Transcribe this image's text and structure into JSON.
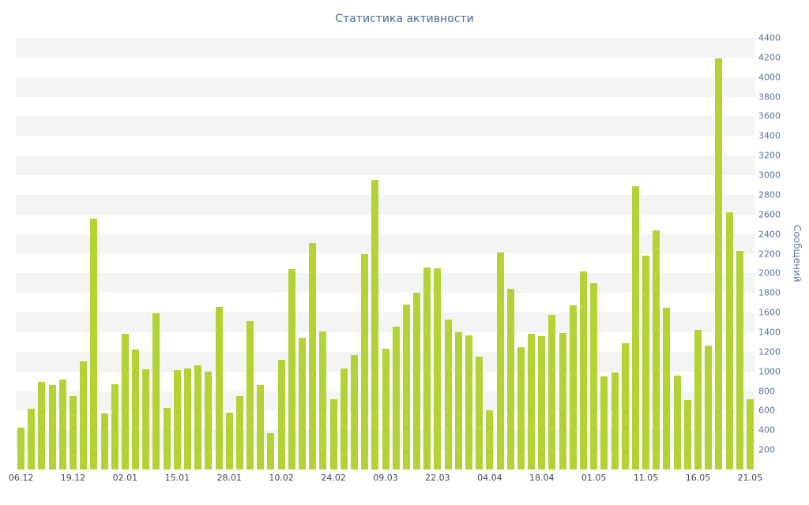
{
  "title": "Статистика активности",
  "y_axis_label": "Сообщений",
  "colors": {
    "bar": "#b2d235",
    "stripe": "#f4f4f5",
    "stripe_alt": "#ffffff",
    "title_text": "#4a6b8c",
    "axis_number_text": "#55719b",
    "date_text": "#3d4a59",
    "ylabel_text": "#5878a0",
    "background": "#ffffff"
  },
  "chart_data": {
    "type": "bar",
    "title": "Статистика активности",
    "ylabel": "Сообщений",
    "xlabel": "",
    "ylim": [
      0,
      4400
    ],
    "y_tick_step": 200,
    "grid": "striped-horizontal-bands",
    "legend": "none",
    "x_tick_labels": [
      "06.12",
      "19.12",
      "02.01",
      "15.01",
      "28.01",
      "10.02",
      "24.02",
      "09.03",
      "22.03",
      "04.04",
      "18.04",
      "01.05",
      "11.05",
      "16.05",
      "21.05"
    ],
    "tick_every": 5,
    "values": [
      430,
      620,
      890,
      860,
      920,
      750,
      1100,
      2560,
      570,
      870,
      1380,
      1220,
      1020,
      1590,
      630,
      1010,
      1030,
      1060,
      1000,
      1660,
      580,
      750,
      1510,
      860,
      370,
      1120,
      2040,
      1340,
      2310,
      1410,
      720,
      1030,
      1170,
      2200,
      2950,
      1230,
      1460,
      1680,
      1800,
      2060,
      2050,
      1530,
      1400,
      1370,
      1150,
      600,
      2210,
      1840,
      1250,
      1380,
      1360,
      1580,
      1390,
      1670,
      2020,
      1900,
      950,
      990,
      1290,
      2890,
      2180,
      2440,
      1650,
      960,
      710,
      1420,
      1260,
      4190,
      2620,
      2230,
      720
    ]
  }
}
